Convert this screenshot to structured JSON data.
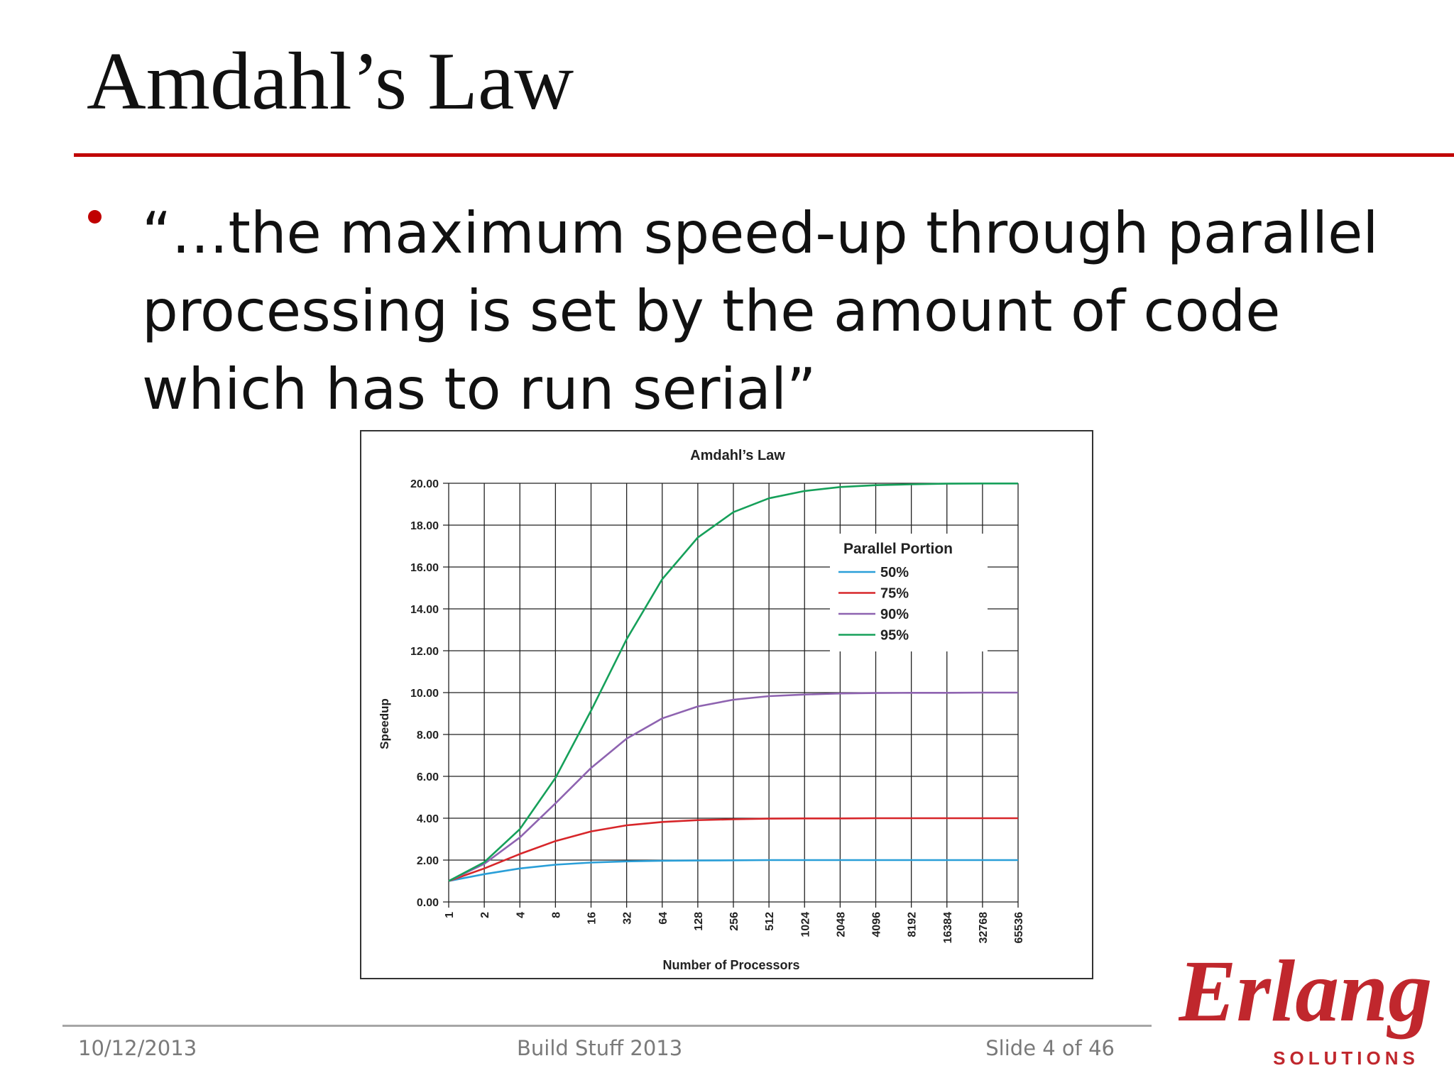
{
  "slide": {
    "title": "Amdahl’s Law",
    "bullet": "“…the maximum speed-up through parallel processing is set by the amount of code which has to run serial”"
  },
  "footer": {
    "date": "10/12/2013",
    "event": "Build Stuff 2013",
    "slide_number": "Slide 4 of 46"
  },
  "logo": {
    "wordmark": "Erlang",
    "sub": "SOLUTIONS",
    "color": "#c0272d"
  },
  "colors": {
    "accent": "#c00000"
  },
  "chart_data": {
    "type": "line",
    "title": "Amdahl’s Law",
    "xlabel": "Number of Processors",
    "ylabel": "Speedup",
    "x_scale": "log2",
    "categories": [
      "1",
      "2",
      "4",
      "8",
      "16",
      "32",
      "64",
      "128",
      "256",
      "512",
      "1024",
      "2048",
      "4096",
      "8192",
      "16384",
      "32768",
      "65536"
    ],
    "ylim": [
      0,
      20
    ],
    "yticks": [
      "0.00",
      "2.00",
      "4.00",
      "6.00",
      "8.00",
      "10.00",
      "12.00",
      "14.00",
      "16.00",
      "18.00",
      "20.00"
    ],
    "grid": true,
    "legend": {
      "title": "Parallel Portion",
      "placement": "upper-right"
    },
    "series": [
      {
        "name": "50%",
        "color": "#2a9fd8",
        "values": [
          1.0,
          1.33,
          1.6,
          1.78,
          1.88,
          1.94,
          1.97,
          1.98,
          1.99,
          2.0,
          2.0,
          2.0,
          2.0,
          2.0,
          2.0,
          2.0,
          2.0
        ]
      },
      {
        "name": "75%",
        "color": "#d7262a",
        "values": [
          1.0,
          1.6,
          2.29,
          2.91,
          3.37,
          3.66,
          3.82,
          3.91,
          3.95,
          3.98,
          3.99,
          3.99,
          4.0,
          4.0,
          4.0,
          4.0,
          4.0
        ]
      },
      {
        "name": "90%",
        "color": "#8e63b0",
        "values": [
          1.0,
          1.82,
          3.08,
          4.71,
          6.4,
          7.8,
          8.77,
          9.34,
          9.66,
          9.83,
          9.91,
          9.96,
          9.98,
          9.99,
          9.99,
          10.0,
          10.0
        ]
      },
      {
        "name": "95%",
        "color": "#16a05a",
        "values": [
          1.0,
          1.9,
          3.48,
          5.93,
          9.14,
          12.55,
          15.42,
          17.41,
          18.62,
          19.28,
          19.63,
          19.82,
          19.91,
          19.95,
          19.98,
          19.99,
          19.99
        ]
      }
    ]
  }
}
